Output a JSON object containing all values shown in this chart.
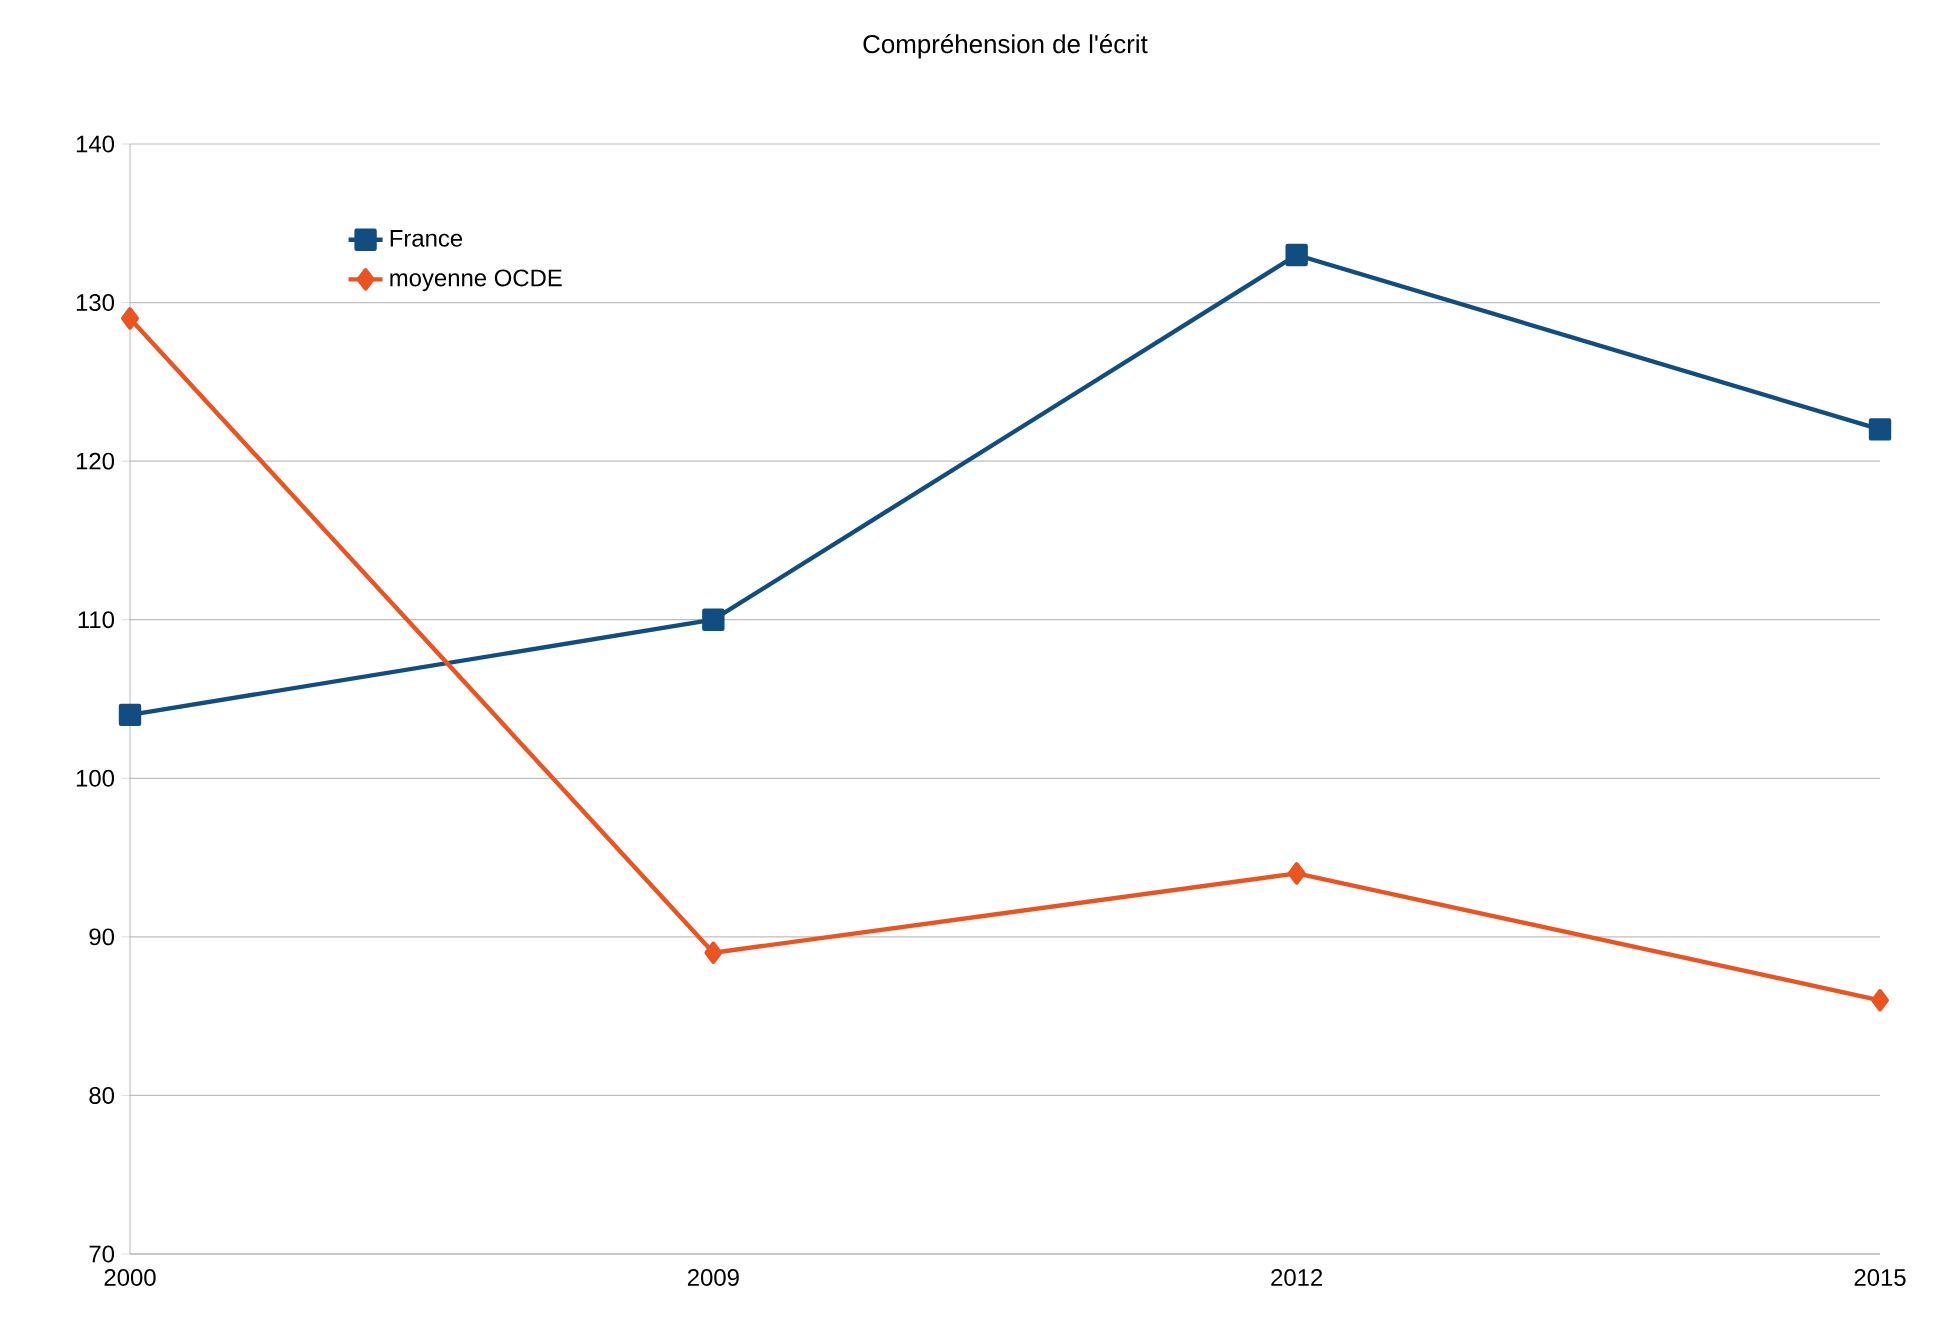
{
  "chart_data": {
    "type": "line",
    "title": "Compréhension de l'écrit",
    "categories": [
      "2000",
      "2009",
      "2012",
      "2015"
    ],
    "series": [
      {
        "name": "France",
        "color": "#114d80",
        "marker": "square",
        "values": [
          104,
          110,
          133,
          122
        ]
      },
      {
        "name": "moyenne OCDE",
        "color": "#ea5420",
        "marker": "diamond",
        "values": [
          129,
          89,
          94,
          86
        ]
      }
    ],
    "ylim": [
      70,
      140
    ],
    "yticks": [
      70,
      80,
      90,
      100,
      110,
      120,
      130,
      140
    ],
    "grid": "y",
    "legend": "top left",
    "line_style": "solid"
  }
}
